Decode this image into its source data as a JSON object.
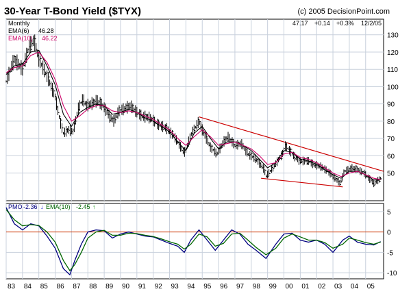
{
  "header": {
    "title": "30-Year T-Bond Yield ($TYX)",
    "copyright": "(c) 2005 DecisionPoint.com"
  },
  "chart_data": [
    {
      "type": "line",
      "panel": "price",
      "period_label": "Monthly",
      "quote": {
        "last": "47.17",
        "change": "+0.14",
        "percent": "+0.3%",
        "date": "12/2/05"
      },
      "legend": [
        {
          "name": "EMA(6)",
          "value": "46.28",
          "color": "#000000"
        },
        {
          "name": "EMA(10)",
          "value": "46.22",
          "color": "#cc0066"
        }
      ],
      "ylim": [
        34,
        139
      ],
      "yticks": [
        "50",
        "60",
        "70",
        "80",
        "90",
        "100",
        "110",
        "120",
        "130"
      ],
      "xlim": [
        1983,
        2006.1
      ],
      "xticks": [
        "83",
        "84",
        "85",
        "86",
        "87",
        "88",
        "89",
        "90",
        "91",
        "92",
        "93",
        "94",
        "95",
        "96",
        "97",
        "98",
        "99",
        "00",
        "01",
        "02",
        "03",
        "04",
        "05"
      ],
      "grid": true,
      "series": [
        {
          "style": "price-bars",
          "x": [
            1983.0,
            1983.5,
            1984.0,
            1984.4,
            1984.7,
            1985.0,
            1985.3,
            1985.6,
            1986.0,
            1986.3,
            1986.5,
            1986.8,
            1987.1,
            1987.4,
            1987.7,
            1987.9,
            1988.2,
            1988.6,
            1989.0,
            1989.3,
            1989.6,
            1989.9,
            1990.2,
            1990.6,
            1990.9,
            1991.3,
            1991.8,
            1992.3,
            1992.8,
            1993.3,
            1993.8,
            1993.95,
            1994.3,
            1994.8,
            1995.0,
            1995.5,
            1995.9,
            1996.3,
            1996.6,
            1997.0,
            1997.4,
            1997.8,
            1998.3,
            1998.8,
            1998.9,
            1999.4,
            1999.9,
            2000.1,
            2000.6,
            2000.95,
            2001.5,
            2001.8,
            2002.2,
            2002.7,
            2003.0,
            2003.45,
            2003.7,
            2004.2,
            2004.5,
            2004.9,
            2005.2,
            2005.5,
            2005.8,
            2005.92
          ],
          "values": [
            103,
            116,
            110,
            123,
            127,
            116,
            110,
            104,
            94,
            80,
            73,
            75,
            74,
            87,
            93,
            89,
            90,
            92,
            88,
            83,
            80,
            86,
            87,
            89,
            86,
            83,
            82,
            78,
            76,
            71,
            63,
            62,
            72,
            80,
            75,
            65,
            61,
            68,
            71,
            66,
            67,
            61,
            58,
            52,
            48,
            54,
            61,
            66,
            60,
            57,
            57,
            55,
            54,
            51,
            48,
            44,
            51,
            53,
            52,
            50,
            47,
            44,
            46,
            47
          ]
        },
        {
          "name": "EMA(6)",
          "color": "#000000",
          "x": [
            1983.0,
            1983.5,
            1984.0,
            1984.5,
            1985.0,
            1985.5,
            1986.0,
            1986.5,
            1987.0,
            1987.5,
            1988.0,
            1988.5,
            1989.0,
            1989.5,
            1990.0,
            1990.5,
            1991.0,
            1991.5,
            1992.0,
            1992.5,
            1993.0,
            1993.5,
            1994.0,
            1994.5,
            1995.0,
            1995.5,
            1996.0,
            1996.5,
            1997.0,
            1997.5,
            1998.0,
            1998.5,
            1999.0,
            1999.5,
            2000.0,
            2000.5,
            2001.0,
            2001.5,
            2002.0,
            2002.5,
            2003.0,
            2003.5,
            2004.0,
            2004.5,
            2005.0,
            2005.5,
            2005.92
          ],
          "values": [
            107,
            112,
            113,
            120,
            121,
            112,
            101,
            84,
            77,
            85,
            88,
            90,
            89,
            84,
            85,
            87,
            85,
            82,
            80,
            77,
            74,
            68,
            63,
            73,
            77,
            70,
            64,
            68,
            68,
            66,
            63,
            58,
            53,
            56,
            63,
            62,
            58,
            57,
            55,
            52,
            49,
            47,
            51,
            51,
            49,
            46,
            46.28
          ]
        },
        {
          "name": "EMA(10)",
          "color": "#cc0066",
          "x": [
            1983.0,
            1983.5,
            1984.0,
            1984.5,
            1985.0,
            1985.5,
            1986.0,
            1986.5,
            1987.0,
            1987.5,
            1988.0,
            1988.5,
            1989.0,
            1989.5,
            1990.0,
            1990.5,
            1991.0,
            1991.5,
            1992.0,
            1992.5,
            1993.0,
            1993.5,
            1994.0,
            1994.5,
            1995.0,
            1995.5,
            1996.0,
            1996.5,
            1997.0,
            1997.5,
            1998.0,
            1998.5,
            1999.0,
            1999.5,
            2000.0,
            2000.5,
            2001.0,
            2001.5,
            2002.0,
            2002.5,
            2003.0,
            2003.5,
            2004.0,
            2004.5,
            2005.0,
            2005.5,
            2005.92
          ],
          "values": [
            108,
            111,
            112,
            118,
            120,
            114,
            104,
            89,
            80,
            83,
            87,
            89,
            89,
            86,
            85,
            86,
            85,
            83,
            81,
            78,
            75,
            70,
            66,
            71,
            75,
            71,
            66,
            67,
            68,
            66,
            64,
            60,
            55,
            56,
            61,
            62,
            59,
            58,
            56,
            53,
            50,
            48,
            50,
            51,
            49,
            47,
            46.22
          ]
        }
      ],
      "trendlines": [
        {
          "color": "#cc0000",
          "x": [
            1994.8,
            2006.1
          ],
          "values": [
            82.5,
            51
          ]
        },
        {
          "color": "#cc0000",
          "x": [
            1998.6,
            2003.6
          ],
          "values": [
            47,
            42
          ]
        }
      ]
    },
    {
      "type": "line",
      "panel": "pmo",
      "legend": [
        {
          "name": "PMO",
          "value": "-2.36",
          "arrow": "↓",
          "color": "#000080",
          "arrow_color": "#0000cc"
        },
        {
          "name": "EMA(10)",
          "value": "-2.45",
          "arrow": "↑",
          "color": "#006600",
          "arrow_color": "#008800"
        }
      ],
      "ylim": [
        -11.5,
        7
      ],
      "yticks": [
        "5",
        "0",
        "-5",
        "-10"
      ],
      "zero_line_color": "#cc3300",
      "series": [
        {
          "name": "PMO",
          "color": "#000080",
          "x": [
            1983.0,
            1983.5,
            1984.0,
            1984.5,
            1985.0,
            1985.5,
            1986.0,
            1986.5,
            1986.9,
            1987.2,
            1987.6,
            1988.0,
            1988.5,
            1989.0,
            1989.5,
            1990.0,
            1990.5,
            1991.0,
            1991.5,
            1992.0,
            1992.5,
            1993.0,
            1993.5,
            1993.9,
            1994.3,
            1994.8,
            1995.3,
            1995.8,
            1996.3,
            1996.8,
            1997.3,
            1997.8,
            1998.3,
            1998.9,
            1999.5,
            2000.0,
            2000.5,
            2001.0,
            2001.5,
            2002.0,
            2002.5,
            2003.0,
            2003.6,
            2004.0,
            2004.5,
            2005.0,
            2005.5,
            2005.92
          ],
          "values": [
            6,
            2,
            0.5,
            2,
            1.5,
            -1,
            -4,
            -9,
            -10.5,
            -7,
            -3,
            0,
            0.5,
            0.3,
            -1.5,
            -0.5,
            0,
            -0.5,
            -1,
            -1.2,
            -2,
            -2.8,
            -3.5,
            -5,
            -2,
            0.5,
            -2,
            -4.5,
            -2,
            0.5,
            -0.5,
            -3,
            -4.5,
            -6.5,
            -3,
            -0.5,
            -0.3,
            -2,
            -2.5,
            -2,
            -3,
            -5,
            -2,
            -1,
            -2.5,
            -3,
            -3.2,
            -2.36
          ]
        },
        {
          "name": "EMA(10)",
          "color": "#006600",
          "x": [
            1983.0,
            1983.5,
            1984.0,
            1984.5,
            1985.0,
            1985.5,
            1986.0,
            1986.5,
            1986.9,
            1987.2,
            1987.6,
            1988.0,
            1988.5,
            1989.0,
            1989.5,
            1990.0,
            1990.5,
            1991.0,
            1991.5,
            1992.0,
            1992.5,
            1993.0,
            1993.5,
            1993.9,
            1994.3,
            1994.8,
            1995.3,
            1995.8,
            1996.3,
            1996.8,
            1997.3,
            1997.8,
            1998.3,
            1998.9,
            1999.5,
            2000.0,
            2000.5,
            2001.0,
            2001.5,
            2002.0,
            2002.5,
            2003.0,
            2003.6,
            2004.0,
            2004.5,
            2005.0,
            2005.5,
            2005.92
          ],
          "values": [
            5.5,
            3,
            1.5,
            1.8,
            1.6,
            0,
            -2.5,
            -7,
            -9.5,
            -8,
            -5,
            -1.5,
            0,
            0.4,
            -0.8,
            -0.8,
            -0.3,
            -0.4,
            -0.8,
            -1.1,
            -1.7,
            -2.4,
            -3,
            -4.2,
            -3,
            -0.5,
            -1.2,
            -3.5,
            -2.8,
            -0.5,
            -0.3,
            -2,
            -3.8,
            -5.6,
            -4,
            -1.5,
            -0.5,
            -1.2,
            -2,
            -2,
            -2.6,
            -4,
            -3,
            -1.5,
            -2,
            -2.6,
            -3,
            -2.45
          ]
        }
      ]
    }
  ]
}
